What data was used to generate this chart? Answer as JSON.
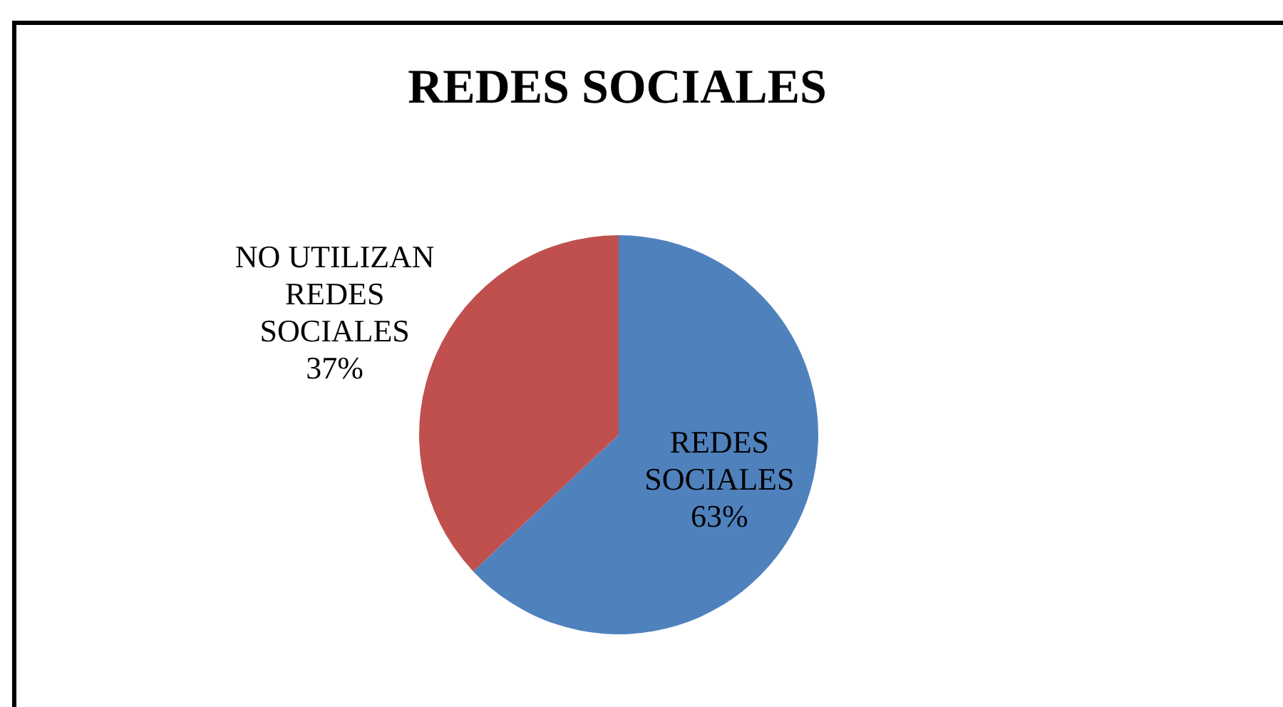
{
  "chart_data": {
    "type": "pie",
    "title": "REDES SOCIALES",
    "categories": [
      "REDES SOCIALES",
      "NO UTILIZAN REDES SOCIALES"
    ],
    "values": [
      63,
      37
    ],
    "colors": [
      "#4f81bd",
      "#c0504d"
    ],
    "value_labels": [
      "63%",
      "37%"
    ],
    "legend": false
  }
}
